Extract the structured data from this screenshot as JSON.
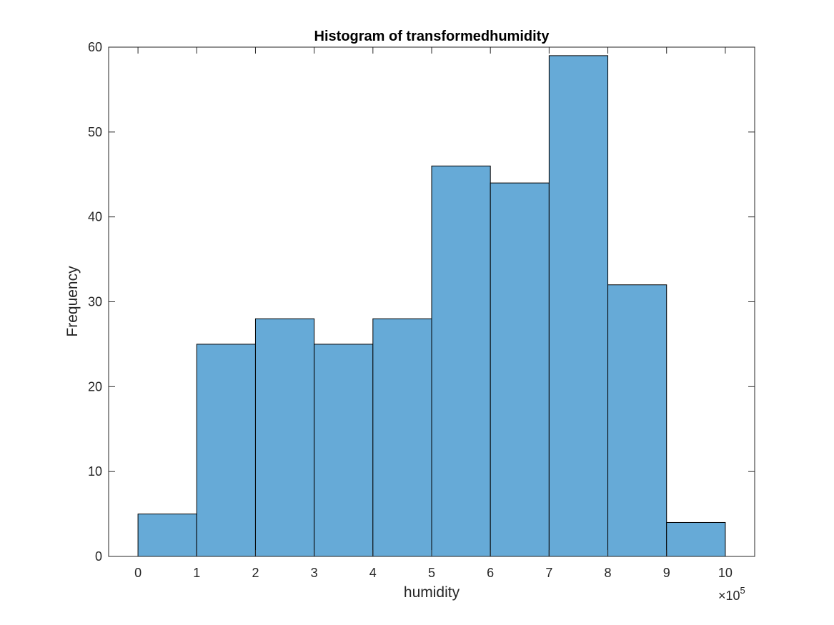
{
  "chart_data": {
    "type": "bar",
    "title": "Histogram of transformedhumidity",
    "xlabel": "humidity",
    "ylabel": "Frequency",
    "x_tick_labels": [
      "0",
      "1",
      "2",
      "3",
      "4",
      "5",
      "6",
      "7",
      "8",
      "9",
      "10"
    ],
    "y_tick_labels": [
      "0",
      "10",
      "20",
      "30",
      "40",
      "50",
      "60"
    ],
    "x_exponent": {
      "base": "×10",
      "power": "5"
    },
    "bin_edges": [
      0,
      100000,
      200000,
      300000,
      400000,
      500000,
      600000,
      700000,
      800000,
      900000,
      1000000
    ],
    "values": [
      5,
      25,
      28,
      25,
      28,
      46,
      44,
      59,
      32,
      4
    ],
    "xlim": [
      -50000,
      1050000
    ],
    "ylim": [
      0,
      60
    ],
    "grid": false,
    "bar_color": "#66aad7",
    "edge_color": "#000000"
  }
}
